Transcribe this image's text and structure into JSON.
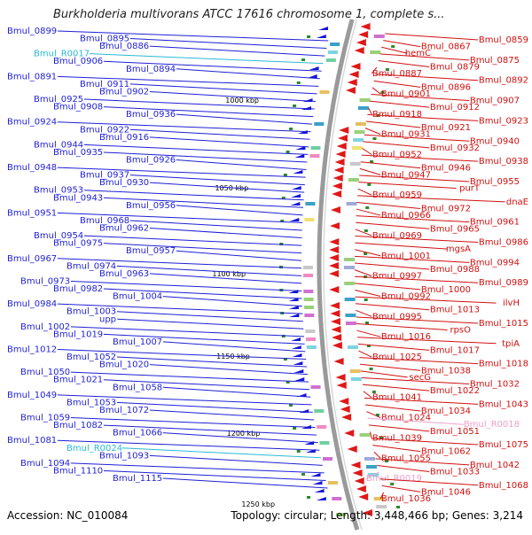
{
  "title": "Burkholderia multivorans ATCC 17616 chromosome 1, complete s...",
  "footer": {
    "accession": "Accession: NC_010084",
    "summary": "Topology: circular; Length: 3,448,466 bp; Genes: 3,214"
  },
  "colors": {
    "left_label": "#1f1fd6",
    "right_label": "#d01010",
    "rna_label_left": "#2bb9d6",
    "rna_label_right": "#f0a0c8",
    "backbone": "#9a9a9a",
    "tick": "#2a8a2a"
  },
  "scale_marks": [
    "1000 kbp",
    "1050 kbp",
    "1100 kbp",
    "1150 kbp",
    "1200 kbp",
    "1250 kbp"
  ],
  "left_labels": [
    {
      "text": "Bmul_0899",
      "kind": "gene"
    },
    {
      "text": "Bmul_0895",
      "kind": "gene"
    },
    {
      "text": "Bmul_0886",
      "kind": "gene"
    },
    {
      "text": "Bmul_R0017",
      "kind": "rna"
    },
    {
      "text": "Bmul_0906",
      "kind": "gene"
    },
    {
      "text": "Bmul_0894",
      "kind": "gene"
    },
    {
      "text": "Bmul_0891",
      "kind": "gene"
    },
    {
      "text": "Bmul_0911",
      "kind": "gene"
    },
    {
      "text": "Bmul_0902",
      "kind": "gene"
    },
    {
      "text": "Bmul_0925",
      "kind": "gene"
    },
    {
      "text": "Bmul_0908",
      "kind": "gene"
    },
    {
      "text": "Bmul_0936",
      "kind": "gene"
    },
    {
      "text": "Bmul_0924",
      "kind": "gene"
    },
    {
      "text": "Bmul_0922",
      "kind": "gene"
    },
    {
      "text": "Bmul_0916",
      "kind": "gene"
    },
    {
      "text": "Bmul_0944",
      "kind": "gene"
    },
    {
      "text": "Bmul_0935",
      "kind": "gene"
    },
    {
      "text": "Bmul_0926",
      "kind": "gene"
    },
    {
      "text": "Bmul_0948",
      "kind": "gene"
    },
    {
      "text": "Bmul_0937",
      "kind": "gene"
    },
    {
      "text": "Bmul_0930",
      "kind": "gene"
    },
    {
      "text": "Bmul_0953",
      "kind": "gene"
    },
    {
      "text": "Bmul_0943",
      "kind": "gene"
    },
    {
      "text": "Bmul_0956",
      "kind": "gene"
    },
    {
      "text": "Bmul_0951",
      "kind": "gene"
    },
    {
      "text": "Bmul_0968",
      "kind": "gene"
    },
    {
      "text": "Bmul_0962",
      "kind": "gene"
    },
    {
      "text": "Bmul_0954",
      "kind": "gene"
    },
    {
      "text": "Bmul_0975",
      "kind": "gene"
    },
    {
      "text": "Bmul_0957",
      "kind": "gene"
    },
    {
      "text": "Bmul_0967",
      "kind": "gene"
    },
    {
      "text": "Bmul_0974",
      "kind": "gene"
    },
    {
      "text": "Bmul_0963",
      "kind": "gene"
    },
    {
      "text": "Bmul_0973",
      "kind": "gene"
    },
    {
      "text": "Bmul_0982",
      "kind": "gene"
    },
    {
      "text": "Bmul_1004",
      "kind": "gene"
    },
    {
      "text": "Bmul_0984",
      "kind": "gene"
    },
    {
      "text": "Bmul_1003",
      "kind": "gene"
    },
    {
      "text": "upp",
      "kind": "gene"
    },
    {
      "text": "Bmul_1002",
      "kind": "gene"
    },
    {
      "text": "Bmul_1019",
      "kind": "gene"
    },
    {
      "text": "Bmul_1007",
      "kind": "gene"
    },
    {
      "text": "Bmul_1012",
      "kind": "gene"
    },
    {
      "text": "Bmul_1052",
      "kind": "gene"
    },
    {
      "text": "Bmul_1020",
      "kind": "gene"
    },
    {
      "text": "Bmul_1050",
      "kind": "gene"
    },
    {
      "text": "Bmul_1021",
      "kind": "gene"
    },
    {
      "text": "Bmul_1058",
      "kind": "gene"
    },
    {
      "text": "Bmul_1049",
      "kind": "gene"
    },
    {
      "text": "Bmul_1053",
      "kind": "gene"
    },
    {
      "text": "Bmul_1072",
      "kind": "gene"
    },
    {
      "text": "Bmul_1059",
      "kind": "gene"
    },
    {
      "text": "Bmul_1082",
      "kind": "gene"
    },
    {
      "text": "Bmul_1066",
      "kind": "gene"
    },
    {
      "text": "Bmul_1081",
      "kind": "gene"
    },
    {
      "text": "Bmul_R0024",
      "kind": "rna"
    },
    {
      "text": "Bmul_1093",
      "kind": "gene"
    },
    {
      "text": "Bmul_1094",
      "kind": "gene"
    },
    {
      "text": "Bmul_1110",
      "kind": "gene"
    },
    {
      "text": "Bmul_1115",
      "kind": "gene"
    }
  ],
  "right_labels": [
    {
      "text": "Bmul_0859",
      "kind": "gene"
    },
    {
      "text": "Bmul_0867",
      "kind": "gene"
    },
    {
      "text": "hemC",
      "kind": "gene"
    },
    {
      "text": "Bmul_0875",
      "kind": "gene"
    },
    {
      "text": "Bmul_0879",
      "kind": "gene"
    },
    {
      "text": "Bmul_0887",
      "kind": "gene"
    },
    {
      "text": "Bmul_0892",
      "kind": "gene"
    },
    {
      "text": "Bmul_0896",
      "kind": "gene"
    },
    {
      "text": "Bmul_0901",
      "kind": "gene"
    },
    {
      "text": "Bmul_0907",
      "kind": "gene"
    },
    {
      "text": "Bmul_0912",
      "kind": "gene"
    },
    {
      "text": "Bmul_0918",
      "kind": "gene"
    },
    {
      "text": "Bmul_0923",
      "kind": "gene"
    },
    {
      "text": "Bmul_0921",
      "kind": "gene"
    },
    {
      "text": "Bmul_0931",
      "kind": "gene"
    },
    {
      "text": "Bmul_0940",
      "kind": "gene"
    },
    {
      "text": "Bmul_0932",
      "kind": "gene"
    },
    {
      "text": "Bmul_0952",
      "kind": "gene"
    },
    {
      "text": "Bmul_0938",
      "kind": "gene"
    },
    {
      "text": "Bmul_0946",
      "kind": "gene"
    },
    {
      "text": "Bmul_0947",
      "kind": "gene"
    },
    {
      "text": "Bmul_0955",
      "kind": "gene"
    },
    {
      "text": "purT",
      "kind": "gene"
    },
    {
      "text": "Bmul_0959",
      "kind": "gene"
    },
    {
      "text": "dnaE",
      "kind": "gene"
    },
    {
      "text": "Bmul_0972",
      "kind": "gene"
    },
    {
      "text": "Bmul_0966",
      "kind": "gene"
    },
    {
      "text": "Bmul_0961",
      "kind": "gene"
    },
    {
      "text": "Bmul_0965",
      "kind": "gene"
    },
    {
      "text": "Bmul_0969",
      "kind": "gene"
    },
    {
      "text": "Bmul_0986",
      "kind": "gene"
    },
    {
      "text": "mgsA",
      "kind": "gene"
    },
    {
      "text": "Bmul_1001",
      "kind": "gene"
    },
    {
      "text": "Bmul_0994",
      "kind": "gene"
    },
    {
      "text": "Bmul_0988",
      "kind": "gene"
    },
    {
      "text": "Bmul_0997",
      "kind": "gene"
    },
    {
      "text": "Bmul_0989",
      "kind": "gene"
    },
    {
      "text": "Bmul_1000",
      "kind": "gene"
    },
    {
      "text": "Bmul_0992",
      "kind": "gene"
    },
    {
      "text": "ilvH",
      "kind": "gene"
    },
    {
      "text": "Bmul_1013",
      "kind": "gene"
    },
    {
      "text": "Bmul_0995",
      "kind": "gene"
    },
    {
      "text": "Bmul_1015",
      "kind": "gene"
    },
    {
      "text": "rpsO",
      "kind": "gene"
    },
    {
      "text": "Bmul_1016",
      "kind": "gene"
    },
    {
      "text": "tpiA",
      "kind": "gene"
    },
    {
      "text": "Bmul_1017",
      "kind": "gene"
    },
    {
      "text": "Bmul_1025",
      "kind": "gene"
    },
    {
      "text": "Bmul_1018",
      "kind": "gene"
    },
    {
      "text": "Bmul_1038",
      "kind": "gene"
    },
    {
      "text": "secG",
      "kind": "gene"
    },
    {
      "text": "Bmul_1032",
      "kind": "gene"
    },
    {
      "text": "Bmul_1022",
      "kind": "gene"
    },
    {
      "text": "Bmul_1041",
      "kind": "gene"
    },
    {
      "text": "Bmul_1043",
      "kind": "gene"
    },
    {
      "text": "Bmul_1034",
      "kind": "gene"
    },
    {
      "text": "Bmul_1024",
      "kind": "gene"
    },
    {
      "text": "Bmul_R0018",
      "kind": "rna"
    },
    {
      "text": "Bmul_1051",
      "kind": "gene"
    },
    {
      "text": "Bmul_1039",
      "kind": "gene"
    },
    {
      "text": "Bmul_1075",
      "kind": "gene"
    },
    {
      "text": "Bmul_1062",
      "kind": "gene"
    },
    {
      "text": "Bmul_1055",
      "kind": "gene"
    },
    {
      "text": "Bmul_1042",
      "kind": "gene"
    },
    {
      "text": "Bmul_1033",
      "kind": "gene"
    },
    {
      "text": "Bmul_R0019",
      "kind": "rna"
    },
    {
      "text": "Bmul_1068",
      "kind": "gene"
    },
    {
      "text": "Bmul_1046",
      "kind": "gene"
    },
    {
      "text": "Bmul_1036",
      "kind": "gene"
    }
  ]
}
